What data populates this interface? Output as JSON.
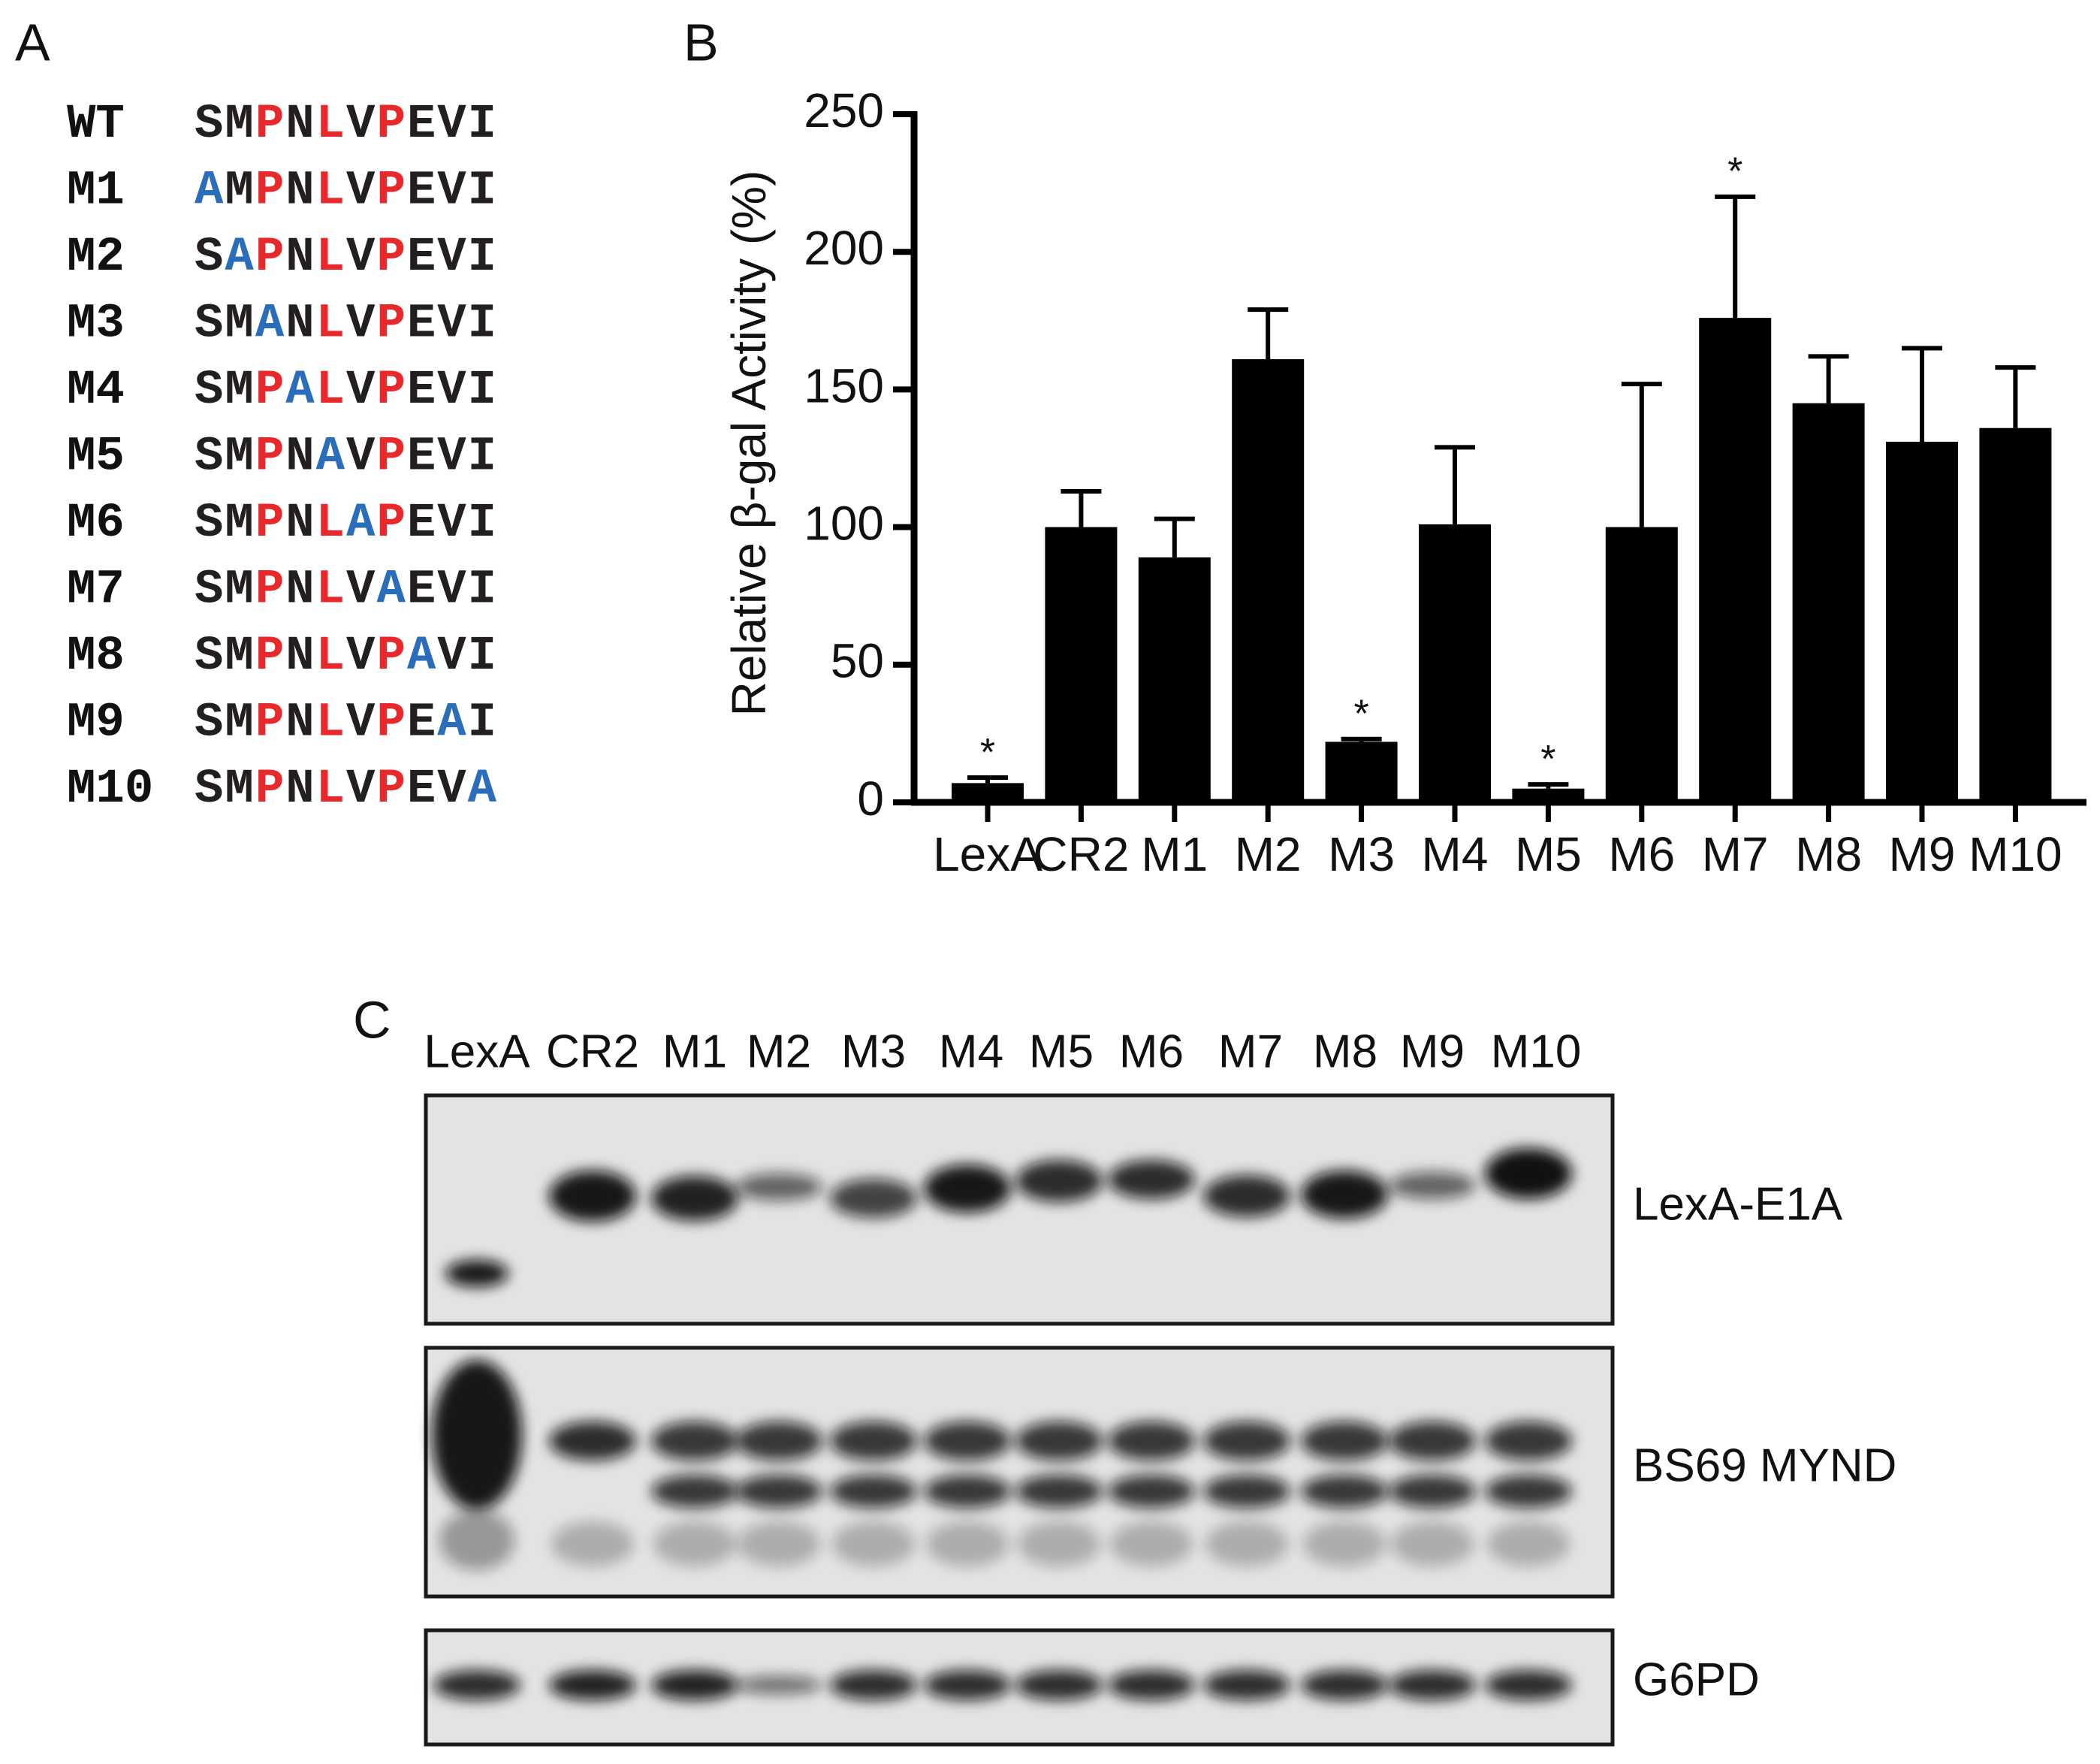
{
  "panel_labels": [
    "A",
    "B",
    "C"
  ],
  "panel_a": {
    "palette": {
      "k": "#231f20",
      "r": "#e8282b",
      "b": "#2a6ebb"
    },
    "rows": [
      {
        "name": "WT",
        "sequence": "SMPNLVPEVI",
        "colors": [
          "k",
          "k",
          "r",
          "k",
          "r",
          "k",
          "r",
          "k",
          "k",
          "k"
        ]
      },
      {
        "name": "M1",
        "sequence": "AMPNLVPEVI",
        "colors": [
          "b",
          "k",
          "r",
          "k",
          "r",
          "k",
          "r",
          "k",
          "k",
          "k"
        ]
      },
      {
        "name": "M2",
        "sequence": "SAPNLVPEVI",
        "colors": [
          "k",
          "b",
          "r",
          "k",
          "r",
          "k",
          "r",
          "k",
          "k",
          "k"
        ]
      },
      {
        "name": "M3",
        "sequence": "SMANLVPEVI",
        "colors": [
          "k",
          "k",
          "b",
          "k",
          "r",
          "k",
          "r",
          "k",
          "k",
          "k"
        ]
      },
      {
        "name": "M4",
        "sequence": "SMPALVPEVI",
        "colors": [
          "k",
          "k",
          "r",
          "b",
          "r",
          "k",
          "r",
          "k",
          "k",
          "k"
        ]
      },
      {
        "name": "M5",
        "sequence": "SMPNAVPEVI",
        "colors": [
          "k",
          "k",
          "r",
          "k",
          "b",
          "k",
          "r",
          "k",
          "k",
          "k"
        ]
      },
      {
        "name": "M6",
        "sequence": "SMPNLAPEVI",
        "colors": [
          "k",
          "k",
          "r",
          "k",
          "r",
          "b",
          "r",
          "k",
          "k",
          "k"
        ]
      },
      {
        "name": "M7",
        "sequence": "SMPNLVAEVI",
        "colors": [
          "k",
          "k",
          "r",
          "k",
          "r",
          "k",
          "b",
          "k",
          "k",
          "k"
        ]
      },
      {
        "name": "M8",
        "sequence": "SMPNLVPAVI",
        "colors": [
          "k",
          "k",
          "r",
          "k",
          "r",
          "k",
          "r",
          "b",
          "k",
          "k"
        ]
      },
      {
        "name": "M9",
        "sequence": "SMPNLVPEAI",
        "colors": [
          "k",
          "k",
          "r",
          "k",
          "r",
          "k",
          "r",
          "k",
          "b",
          "k"
        ]
      },
      {
        "name": "M10",
        "sequence": "SMPNLVPEVA",
        "colors": [
          "k",
          "k",
          "r",
          "k",
          "r",
          "k",
          "r",
          "k",
          "k",
          "b"
        ]
      }
    ]
  },
  "chart_data": {
    "type": "bar",
    "y_label": "Relative β-gal Activity (%)",
    "categories": [
      "LexA",
      "CR2",
      "M1",
      "M2",
      "M3",
      "M4",
      "M5",
      "M6",
      "M7",
      "M8",
      "M9",
      "M10"
    ],
    "values": [
      7,
      100,
      89,
      161,
      22,
      101,
      5,
      100,
      176,
      145,
      131,
      136
    ],
    "errors": [
      2,
      13,
      14,
      18,
      1,
      28,
      1.5,
      52,
      44,
      17,
      34,
      22
    ],
    "significance_marks": [
      "*",
      null,
      null,
      null,
      "*",
      null,
      "*",
      null,
      "*",
      null,
      null,
      null
    ],
    "color": "#000000",
    "ylim": [
      0,
      250
    ],
    "yticks": [
      0,
      50,
      100,
      150,
      200,
      250
    ],
    "grid": false
  },
  "panel_c": {
    "lanes": [
      "LexA",
      "CR2",
      "M1",
      "M2",
      "M3",
      "M4",
      "M5",
      "M6",
      "M7",
      "M8",
      "M9",
      "M10"
    ],
    "blots": [
      "LexA-E1A",
      "BS69 MYND",
      "G6PD"
    ]
  }
}
